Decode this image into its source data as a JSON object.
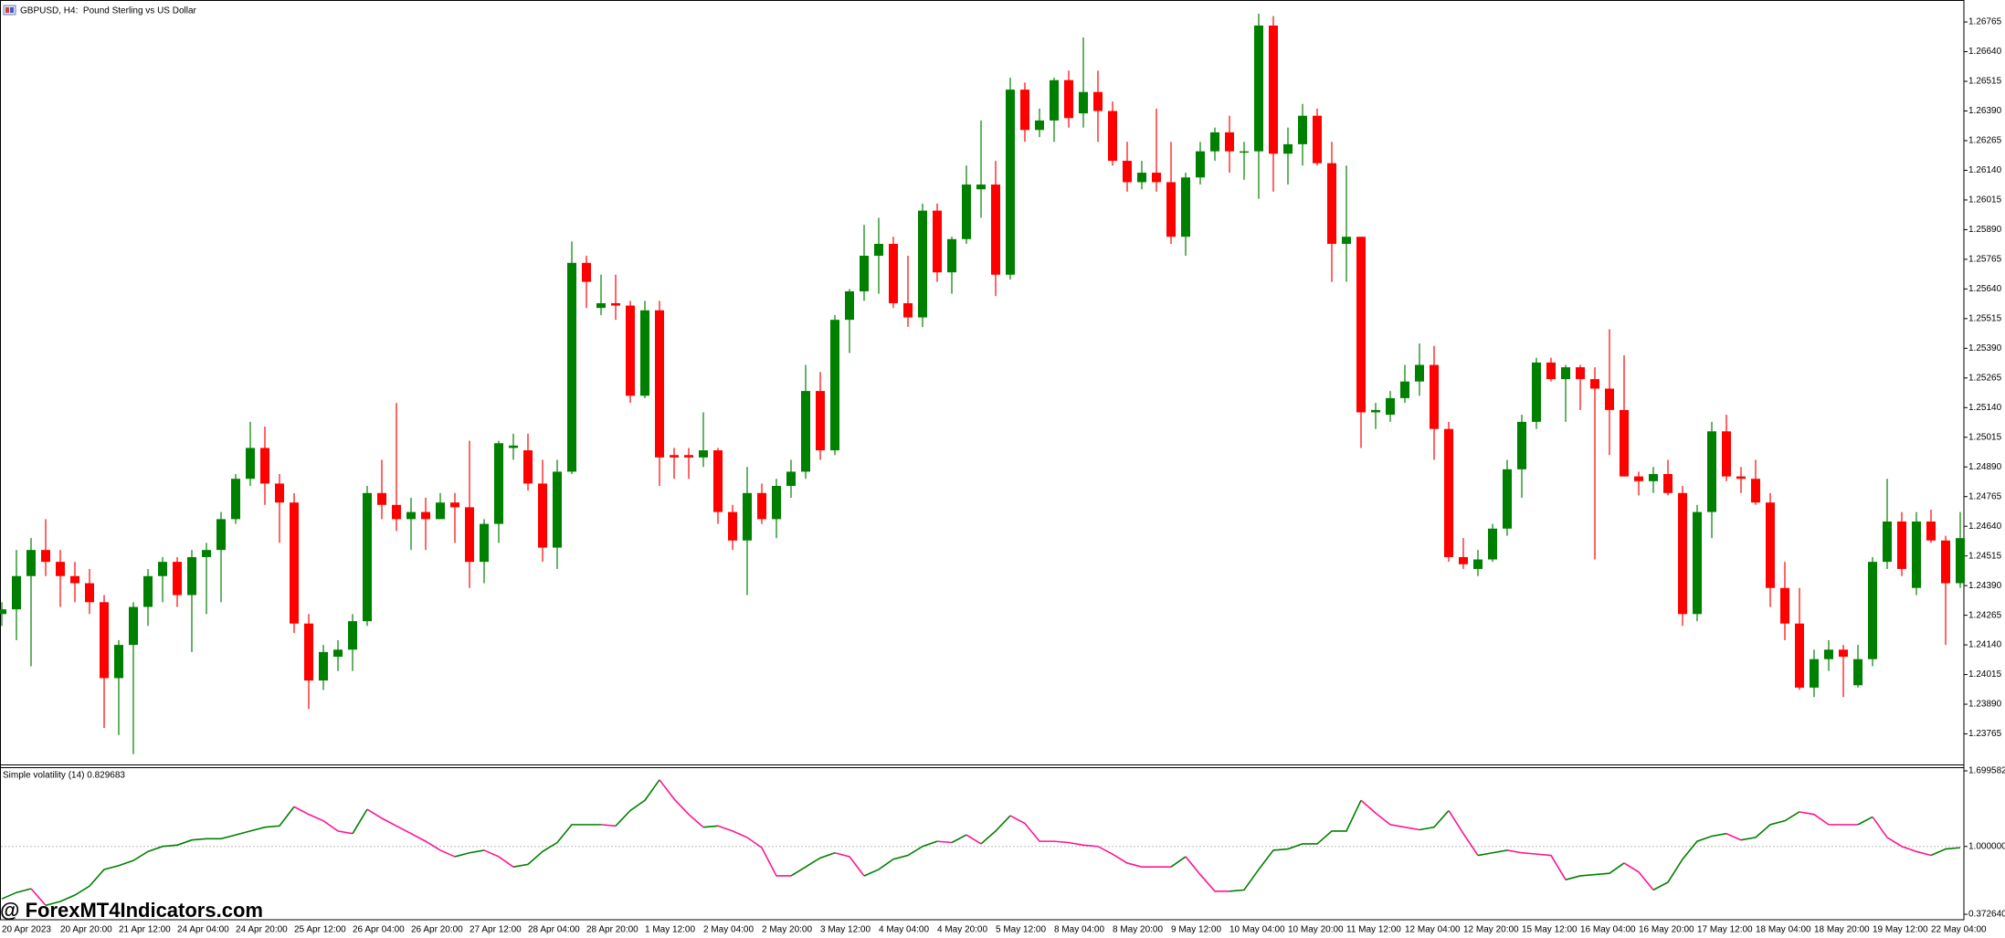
{
  "chart_data": [
    {
      "type": "candlestick",
      "title": "GBPUSD, H4:  Pound Sterling vs US Dollar",
      "categories": [
        "20 Apr 2023",
        null,
        null,
        null,
        "20 Apr 20:00",
        null,
        null,
        null,
        "21 Apr 12:00",
        null,
        null,
        null,
        "24 Apr 04:00",
        null,
        null,
        null,
        "24 Apr 20:00",
        null,
        null,
        null,
        "25 Apr 12:00",
        null,
        null,
        null,
        "26 Apr 04:00",
        null,
        null,
        null,
        "26 Apr 20:00",
        null,
        null,
        null,
        "27 Apr 12:00",
        null,
        null,
        null,
        "28 Apr 04:00",
        null,
        null,
        null,
        "28 Apr 20:00",
        null,
        null,
        null,
        "1 May 12:00",
        null,
        null,
        null,
        "2 May 04:00",
        null,
        null,
        null,
        "2 May 20:00",
        null,
        null,
        null,
        "3 May 12:00",
        null,
        null,
        null,
        "4 May 04:00",
        null,
        null,
        null,
        "4 May 20:00",
        null,
        null,
        null,
        "5 May 12:00",
        null,
        null,
        null,
        "8 May 04:00",
        null,
        null,
        null,
        "8 May 20:00",
        null,
        null,
        null,
        "9 May 12:00",
        null,
        null,
        null,
        "10 May 04:00",
        null,
        null,
        null,
        "10 May 20:00",
        null,
        null,
        null,
        "11 May 12:00",
        null,
        null,
        null,
        "12 May 04:00",
        null,
        null,
        null,
        "12 May 20:00",
        null,
        null,
        null,
        "15 May 12:00",
        null,
        null,
        null,
        "16 May 04:00",
        null,
        null,
        null,
        "16 May 20:00",
        null,
        null,
        null,
        "17 May 12:00",
        null,
        null,
        null,
        "18 May 04:00",
        null,
        null,
        null,
        "18 May 20:00",
        null,
        null,
        null,
        "19 May 12:00",
        null,
        null,
        null,
        "22 May 04:00",
        null,
        null
      ],
      "open": [
        1.2427,
        1.2429,
        1.2443,
        1.2454,
        1.2449,
        1.2443,
        1.244,
        1.2432,
        1.24,
        1.2414,
        1.243,
        1.2443,
        1.2449,
        1.2435,
        1.2451,
        1.2454,
        1.2467,
        1.2484,
        1.2497,
        1.2482,
        1.2474,
        1.2423,
        1.2399,
        1.2409,
        1.2412,
        1.2424,
        1.2478,
        1.2473,
        1.2467,
        1.247,
        1.2467,
        1.2474,
        1.2472,
        1.2449,
        1.2465,
        1.2497,
        1.2496,
        1.2482,
        1.2455,
        1.2487,
        1.2575,
        1.2556,
        1.2558,
        1.2557,
        1.2519,
        1.2555,
        1.2494,
        1.2494,
        1.2493,
        1.2496,
        1.247,
        1.2458,
        1.2478,
        1.2467,
        1.2481,
        1.2487,
        1.2521,
        1.2496,
        1.2551,
        1.2563,
        1.2578,
        1.2583,
        1.2558,
        1.2552,
        1.2597,
        1.2571,
        1.2585,
        1.2606,
        1.2608,
        1.257,
        1.2648,
        1.2631,
        1.2635,
        1.2652,
        1.2638,
        1.2647,
        1.2639,
        1.2618,
        1.2609,
        1.2613,
        1.2609,
        1.2586,
        1.2611,
        1.2622,
        1.263,
        1.2622,
        1.2622,
        1.2675,
        1.2621,
        1.2625,
        1.2637,
        1.2617,
        1.2583,
        1.2586,
        1.2512,
        1.2511,
        1.2518,
        1.2525,
        1.2532,
        1.2505,
        1.2451,
        1.2446,
        1.245,
        1.2463,
        1.2488,
        1.2508,
        1.2533,
        1.2526,
        1.2531,
        1.2526,
        1.2522,
        1.2513,
        1.2485,
        1.2483,
        1.2486,
        1.2478,
        1.2427,
        1.247,
        1.2504,
        1.2485,
        1.2484,
        1.2474,
        1.2438,
        1.2423,
        1.2396,
        1.2408,
        1.2412,
        1.2397,
        1.2408,
        1.2449,
        1.2466,
        1.2438,
        1.2466,
        1.2458,
        1.244
      ],
      "high": [
        1.2432,
        1.2454,
        1.2459,
        1.2467,
        1.2454,
        1.2449,
        1.2446,
        1.2435,
        1.2416,
        1.2432,
        1.2446,
        1.2451,
        1.2451,
        1.2454,
        1.2457,
        1.247,
        1.2486,
        1.2508,
        1.2506,
        1.2486,
        1.2478,
        1.2427,
        1.2414,
        1.2416,
        1.2427,
        1.2481,
        1.2492,
        1.2516,
        1.2476,
        1.2476,
        1.2478,
        1.2478,
        1.25,
        1.2467,
        1.25,
        1.2503,
        1.2503,
        1.2492,
        1.2492,
        1.2584,
        1.2578,
        1.257,
        1.257,
        1.2559,
        1.2559,
        1.2559,
        1.2497,
        1.2497,
        1.2512,
        1.2497,
        1.2473,
        1.2489,
        1.2482,
        1.2484,
        1.2492,
        1.2532,
        1.2529,
        1.2553,
        1.2564,
        1.2591,
        1.2594,
        1.2586,
        1.2578,
        1.26,
        1.26,
        1.2586,
        1.2616,
        1.2635,
        1.2618,
        1.2653,
        1.2651,
        1.264,
        1.2653,
        1.2656,
        1.267,
        1.2656,
        1.2643,
        1.2626,
        1.2618,
        1.264,
        1.2626,
        1.2613,
        1.2626,
        1.2632,
        1.2637,
        1.2626,
        1.268,
        1.2679,
        1.2632,
        1.2642,
        1.264,
        1.2626,
        1.2616,
        1.2586,
        1.2516,
        1.2521,
        1.2532,
        1.2541,
        1.254,
        1.2508,
        1.2459,
        1.2454,
        1.2465,
        1.2492,
        1.2511,
        1.2535,
        1.2535,
        1.2532,
        1.2532,
        1.2531,
        1.2547,
        1.2536,
        1.2487,
        1.2489,
        1.2492,
        1.2481,
        1.2473,
        1.2508,
        1.2511,
        1.2489,
        1.2492,
        1.2478,
        1.2449,
        1.2438,
        1.2412,
        1.2416,
        1.2414,
        1.2414,
        1.2451,
        1.2484,
        1.247,
        1.247,
        1.2471,
        1.246,
        1.247
      ],
      "low": [
        1.2422,
        1.2416,
        1.2405,
        1.2443,
        1.243,
        1.2432,
        1.2427,
        1.2379,
        1.2376,
        1.2368,
        1.2422,
        1.2432,
        1.243,
        1.2411,
        1.2427,
        1.2432,
        1.2465,
        1.2481,
        1.2473,
        1.2457,
        1.2419,
        1.2387,
        1.2395,
        1.2403,
        1.2403,
        1.2422,
        1.2467,
        1.2462,
        1.2454,
        1.2454,
        1.2467,
        1.2457,
        1.2438,
        1.244,
        1.2457,
        1.2492,
        1.2479,
        1.2449,
        1.2446,
        1.2486,
        1.2556,
        1.2553,
        1.2551,
        1.2516,
        1.2518,
        1.2481,
        1.2484,
        1.2484,
        1.2489,
        1.2465,
        1.2454,
        1.2435,
        1.2465,
        1.2459,
        1.2476,
        1.2484,
        1.2492,
        1.2494,
        1.2537,
        1.2559,
        1.2562,
        1.2556,
        1.2548,
        1.2548,
        1.2567,
        1.2562,
        1.2583,
        1.2594,
        1.2561,
        1.2568,
        1.2626,
        1.2628,
        1.2626,
        1.2632,
        1.2632,
        1.2626,
        1.2616,
        1.2605,
        1.2606,
        1.2605,
        1.2583,
        1.2578,
        1.2608,
        1.2618,
        1.2613,
        1.261,
        1.2602,
        1.2605,
        1.2608,
        1.2616,
        1.2616,
        1.2567,
        1.2567,
        1.2497,
        1.2505,
        1.2508,
        1.2516,
        1.2519,
        1.2492,
        1.2449,
        1.2446,
        1.2443,
        1.2449,
        1.246,
        1.2476,
        1.2505,
        1.2525,
        1.2508,
        1.2513,
        1.245,
        1.2494,
        1.2485,
        1.2477,
        1.2478,
        1.2477,
        1.2422,
        1.2424,
        1.2459,
        1.2483,
        1.2478,
        1.2473,
        1.243,
        1.2416,
        1.2395,
        1.2392,
        1.2403,
        1.2392,
        1.2396,
        1.2405,
        1.2446,
        1.2443,
        1.2435,
        1.2457,
        1.2414,
        1.2438
      ],
      "close": [
        1.2429,
        1.2443,
        1.2454,
        1.2449,
        1.2443,
        1.244,
        1.2432,
        1.24,
        1.2414,
        1.243,
        1.2443,
        1.2449,
        1.2435,
        1.2451,
        1.2454,
        1.2467,
        1.2484,
        1.2497,
        1.2482,
        1.2474,
        1.2423,
        1.2399,
        1.2411,
        1.2412,
        1.2424,
        1.2478,
        1.2473,
        1.2467,
        1.247,
        1.2467,
        1.2474,
        1.2472,
        1.2449,
        1.2465,
        1.2499,
        1.2498,
        1.2482,
        1.2455,
        1.2487,
        1.2575,
        1.2567,
        1.2558,
        1.2557,
        1.2519,
        1.2555,
        1.2493,
        1.2493,
        1.2493,
        1.2496,
        1.247,
        1.2458,
        1.2478,
        1.2467,
        1.2481,
        1.2487,
        1.2521,
        1.2496,
        1.2551,
        1.2563,
        1.2578,
        1.2583,
        1.2558,
        1.2552,
        1.2597,
        1.2571,
        1.2585,
        1.2608,
        1.2608,
        1.257,
        1.2648,
        1.2631,
        1.2635,
        1.2652,
        1.2636,
        1.2647,
        1.2639,
        1.2618,
        1.2609,
        1.2613,
        1.2609,
        1.2586,
        1.2611,
        1.2622,
        1.263,
        1.2622,
        1.2622,
        1.2675,
        1.2621,
        1.2625,
        1.2637,
        1.2617,
        1.2583,
        1.2586,
        1.2512,
        1.2513,
        1.2518,
        1.2525,
        1.2532,
        1.2505,
        1.2451,
        1.2448,
        1.245,
        1.2463,
        1.2488,
        1.2508,
        1.2533,
        1.2526,
        1.2531,
        1.2526,
        1.2522,
        1.2513,
        1.2485,
        1.2483,
        1.2486,
        1.2478,
        1.2427,
        1.247,
        1.2504,
        1.2485,
        1.2484,
        1.2474,
        1.2438,
        1.2423,
        1.2396,
        1.2408,
        1.2412,
        1.2409,
        1.2408,
        1.2449,
        1.2466,
        1.2446,
        1.2466,
        1.2458,
        1.244,
        1.2459
      ],
      "up_color": "#008000",
      "down_color": "#ff0000",
      "ylim": [
        1.2364,
        1.2685
      ],
      "yticks": [
        1.26765,
        {
          "value": 1.2664,
          "label": "1.26640"
        },
        1.26515,
        {
          "value": 1.2639,
          "label": "1.26390"
        },
        1.26265,
        {
          "value": 1.2614,
          "label": "1.26140"
        },
        1.26015,
        {
          "value": 1.2589,
          "label": "1.25890"
        },
        1.25765,
        {
          "value": 1.2564,
          "label": "1.25640"
        },
        1.25515,
        {
          "value": 1.2539,
          "label": "1.25390"
        },
        1.25265,
        {
          "value": 1.2514,
          "label": "1.25140"
        },
        1.25015,
        {
          "value": 1.2489,
          "label": "1.24890"
        },
        1.24765,
        {
          "value": 1.2464,
          "label": "1.24640"
        },
        1.24515,
        {
          "value": 1.2439,
          "label": "1.24390"
        },
        1.24265,
        {
          "value": 1.2414,
          "label": "1.24140"
        },
        1.24015,
        {
          "value": 1.2389,
          "label": "1.23890"
        },
        1.23765
      ],
      "grid": false
    },
    {
      "type": "line",
      "title": "Simple volatility (14) 0.829683",
      "values": [
        0.5146,
        0.5738,
        0.6094,
        0.4553,
        0.4909,
        0.5501,
        0.6331,
        0.7871,
        0.8227,
        0.8701,
        0.953,
        1.0004,
        1.0123,
        1.0597,
        1.0715,
        1.0715,
        1.1071,
        1.1426,
        1.1782,
        1.19,
        1.3678,
        1.2967,
        1.2374,
        1.1426,
        1.1189,
        1.344,
        1.2611,
        1.19,
        1.1189,
        1.0478,
        0.9649,
        0.9056,
        0.9412,
        0.9649,
        0.9056,
        0.8108,
        0.8345,
        0.953,
        1.036,
        1.2019,
        1.2019,
        1.2019,
        1.19,
        1.3322,
        1.427,
        1.6166,
        1.4389,
        1.2967,
        1.1782,
        1.19,
        1.1426,
        1.0834,
        0.9886,
        0.7279,
        0.7279,
        0.8108,
        0.8938,
        0.9412,
        0.9056,
        0.7279,
        0.7871,
        0.8819,
        0.9175,
        1.0004,
        1.0478,
        1.036,
        1.1071,
        1.0241,
        1.1426,
        1.2848,
        1.2137,
        1.0478,
        1.0478,
        1.036,
        1.0123,
        1.0004,
        0.9293,
        0.8464,
        0.8108,
        0.8108,
        0.8108,
        0.9056,
        0.7397,
        0.5857,
        0.5857,
        0.5975,
        0.7871,
        0.9649,
        0.9767,
        1.0241,
        1.0241,
        1.1426,
        1.1426,
        1.427,
        1.3085,
        1.2019,
        1.1782,
        1.1545,
        1.1782,
        1.3322,
        1.1189,
        0.9175,
        0.9412,
        0.9649,
        0.9412,
        0.9293,
        0.9175,
        0.6923,
        0.7279,
        0.7397,
        0.7516,
        0.8464,
        0.7634,
        0.5975,
        0.6686,
        0.8819,
        1.0478,
        1.0952,
        1.1189,
        1.0597,
        1.0834,
        1.2019,
        1.2374,
        1.3204,
        1.2967,
        1.2019,
        1.2019,
        1.2019,
        1.273,
        1.0834,
        1.0004,
        0.953,
        0.9175,
        0.9767,
        0.9886
      ],
      "up_color": "#008000",
      "down_color": "#ff1493",
      "ylim": [
        0.37264,
        1.699582
      ],
      "yticks": [
        1.699582,
        {
          "value": 1,
          "label": "1.000000"
        },
        {
          "value": 0.37264,
          "label": "0.372640"
        }
      ],
      "level_style": "dotted"
    }
  ],
  "watermark": "@ ForexMT4Indicators.com"
}
